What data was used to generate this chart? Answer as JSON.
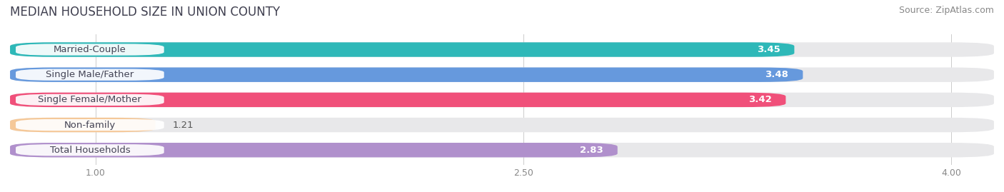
{
  "title": "MEDIAN HOUSEHOLD SIZE IN UNION COUNTY",
  "source": "Source: ZipAtlas.com",
  "categories": [
    "Married-Couple",
    "Single Male/Father",
    "Single Female/Mother",
    "Non-family",
    "Total Households"
  ],
  "values": [
    3.45,
    3.48,
    3.42,
    1.21,
    2.83
  ],
  "bar_colors": [
    "#2eb8b8",
    "#6699dd",
    "#f0507a",
    "#f5c898",
    "#b090cc"
  ],
  "background_colors": [
    "#ebebeb",
    "#ebebeb",
    "#ebebeb",
    "#ebebeb",
    "#ebebeb"
  ],
  "label_pill_colors": [
    "#2eb8b8",
    "#6699dd",
    "#f0507a",
    "#f5c898",
    "#b090cc"
  ],
  "xlim": [
    0.7,
    4.15
  ],
  "xticks": [
    1.0,
    2.5,
    4.0
  ],
  "title_fontsize": 12,
  "source_fontsize": 9,
  "label_fontsize": 9.5,
  "value_fontsize": 9.5,
  "bar_height": 0.58,
  "fig_bg": "#ffffff"
}
